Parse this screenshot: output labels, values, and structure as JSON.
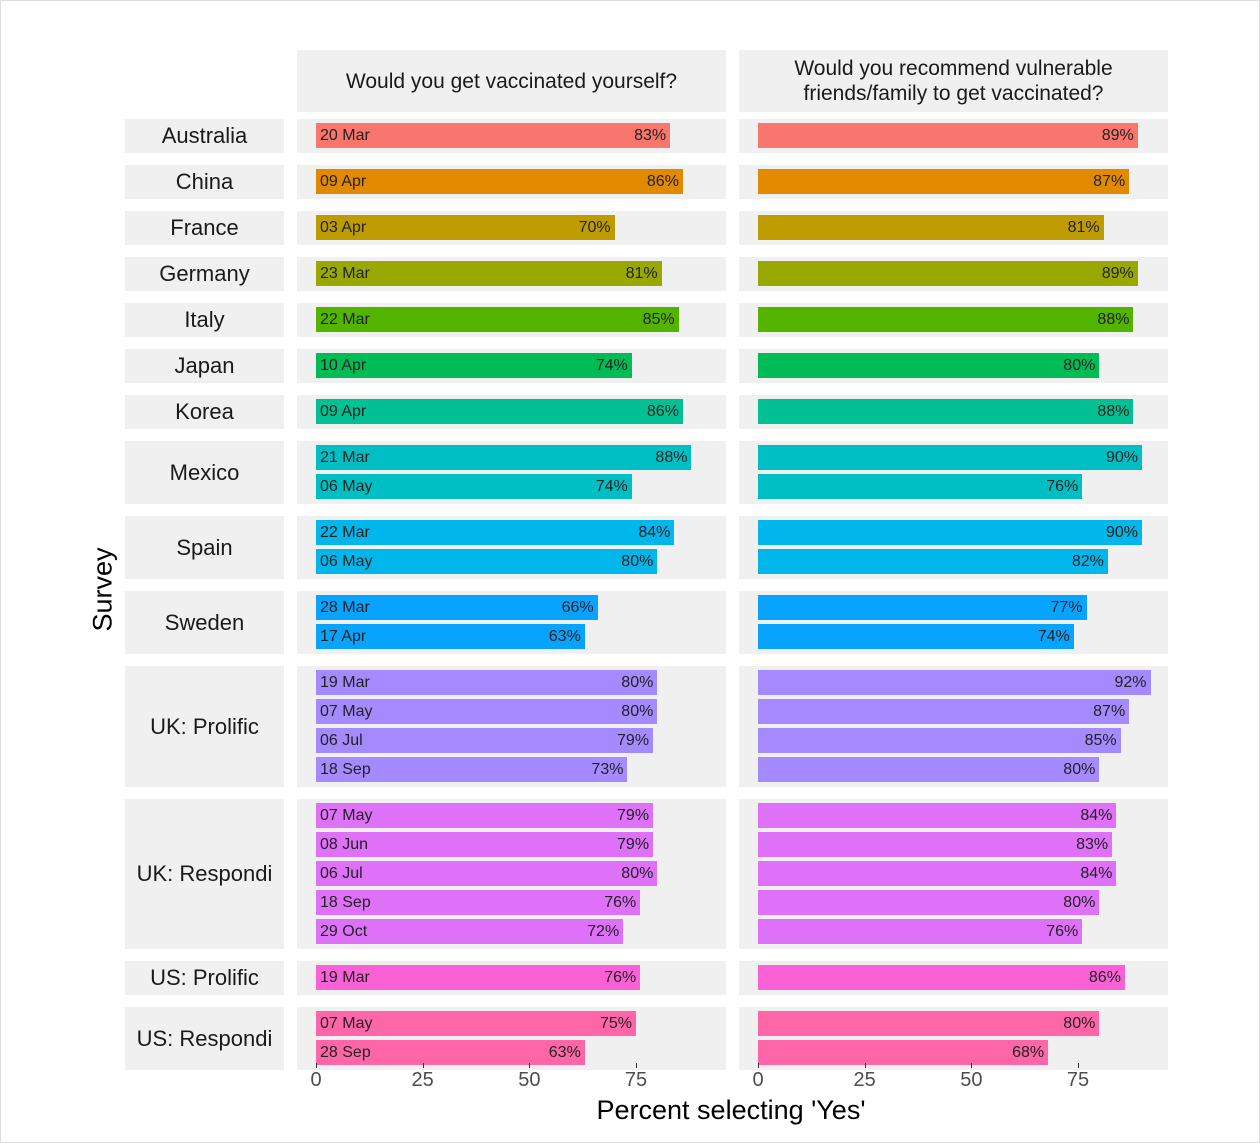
{
  "chart_data": {
    "type": "bar",
    "orientation": "horizontal",
    "panels": [
      "Would you get vaccinated yourself?",
      "Would you recommend vulnerable friends/family to get vaccinated?"
    ],
    "xlabel": "Percent selecting 'Yes'",
    "ylabel": "Survey",
    "xticks": [
      0,
      25,
      50,
      75
    ],
    "xlim": [
      0,
      95
    ],
    "grid": false,
    "groups": [
      {
        "survey": "Australia",
        "color": "#F8766D",
        "dates": [
          "20 Mar"
        ],
        "self": [
          83
        ],
        "recommend": [
          89
        ]
      },
      {
        "survey": "China",
        "color": "#E18A00",
        "dates": [
          "09 Apr"
        ],
        "self": [
          86
        ],
        "recommend": [
          87
        ]
      },
      {
        "survey": "France",
        "color": "#BE9C00",
        "dates": [
          "03 Apr"
        ],
        "self": [
          70
        ],
        "recommend": [
          81
        ]
      },
      {
        "survey": "Germany",
        "color": "#99A800",
        "dates": [
          "23 Mar"
        ],
        "self": [
          81
        ],
        "recommend": [
          89
        ]
      },
      {
        "survey": "Italy",
        "color": "#53B400",
        "dates": [
          "22 Mar"
        ],
        "self": [
          85
        ],
        "recommend": [
          88
        ]
      },
      {
        "survey": "Japan",
        "color": "#00BC56",
        "dates": [
          "10 Apr"
        ],
        "self": [
          74
        ],
        "recommend": [
          80
        ]
      },
      {
        "survey": "Korea",
        "color": "#00C094",
        "dates": [
          "09 Apr"
        ],
        "self": [
          86
        ],
        "recommend": [
          88
        ]
      },
      {
        "survey": "Mexico",
        "color": "#00BFC4",
        "dates": [
          "21 Mar",
          "06 May"
        ],
        "self": [
          88,
          74
        ],
        "recommend": [
          90,
          76
        ]
      },
      {
        "survey": "Spain",
        "color": "#00B6EB",
        "dates": [
          "22 Mar",
          "06 May"
        ],
        "self": [
          84,
          80
        ],
        "recommend": [
          90,
          82
        ]
      },
      {
        "survey": "Sweden",
        "color": "#06A4FF",
        "dates": [
          "28 Mar",
          "17 Apr"
        ],
        "self": [
          66,
          63
        ],
        "recommend": [
          77,
          74
        ]
      },
      {
        "survey": "UK: Prolific",
        "color": "#A58AFF",
        "dates": [
          "19 Mar",
          "07 May",
          "06 Jul",
          "18 Sep"
        ],
        "self": [
          80,
          80,
          79,
          73
        ],
        "recommend": [
          92,
          87,
          85,
          80
        ]
      },
      {
        "survey": "UK: Respondi",
        "color": "#DF70F8",
        "dates": [
          "07 May",
          "08 Jun",
          "06 Jul",
          "18 Sep",
          "29 Oct"
        ],
        "self": [
          79,
          79,
          80,
          76,
          72
        ],
        "recommend": [
          84,
          83,
          84,
          80,
          76
        ]
      },
      {
        "survey": "US: Prolific",
        "color": "#FB61D7",
        "dates": [
          "19 Mar"
        ],
        "self": [
          76
        ],
        "recommend": [
          86
        ]
      },
      {
        "survey": "US: Respondi",
        "color": "#FF66A8",
        "dates": [
          "07 May",
          "28 Sep"
        ],
        "self": [
          75,
          63
        ],
        "recommend": [
          80,
          68
        ]
      }
    ]
  }
}
